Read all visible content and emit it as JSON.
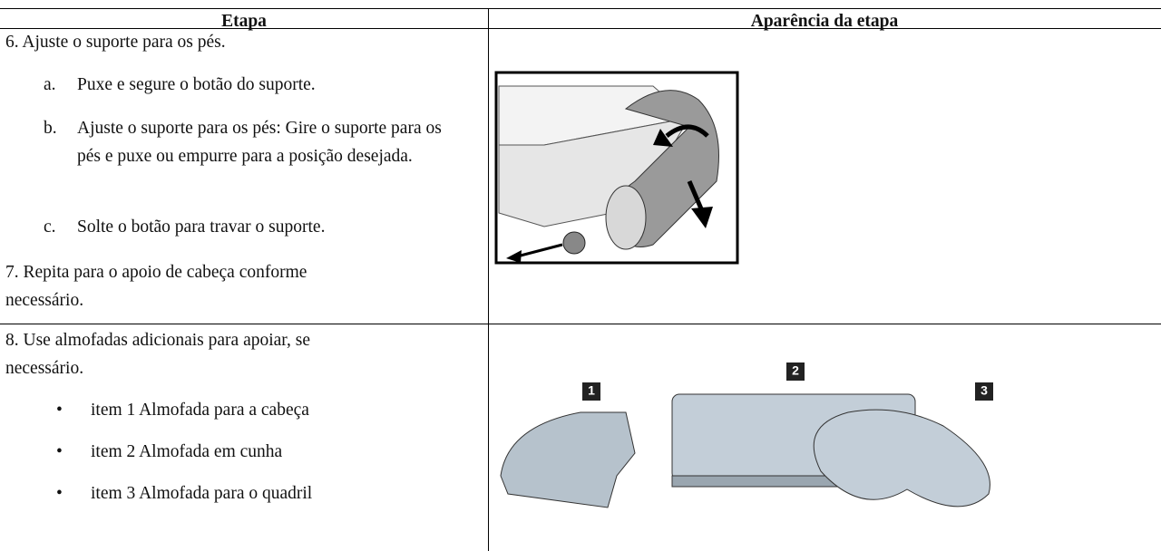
{
  "table": {
    "header": [
      "Etapa",
      "Aparência da etapa"
    ],
    "rows": [
      {
        "step": "6. Ajuste o suporte para os pés.",
        "substeps": [
          {
            "letter": "a.",
            "text": "Puxe e segure o botão do suporte."
          },
          {
            "letter": "b.",
            "text": "Ajuste o suporte para os pés: Gire o suporte para os pés e puxe ou empurre para a posição desejada."
          },
          {
            "letter": "c.",
            "text": "Solte o botão para travar o suporte."
          }
        ],
        "note": "7. Repita para o apoio de cabeça conforme necessário."
      },
      {
        "step": "8. Use almofadas adicionais para apoiar, se necessário.",
        "bullets": [
          "item 1 Almofada para a cabeça",
          "item 2 Almofada em cunha",
          "item 3 Almofada para o quadril"
        ],
        "callouts": [
          "1",
          "2",
          "3"
        ]
      }
    ]
  }
}
